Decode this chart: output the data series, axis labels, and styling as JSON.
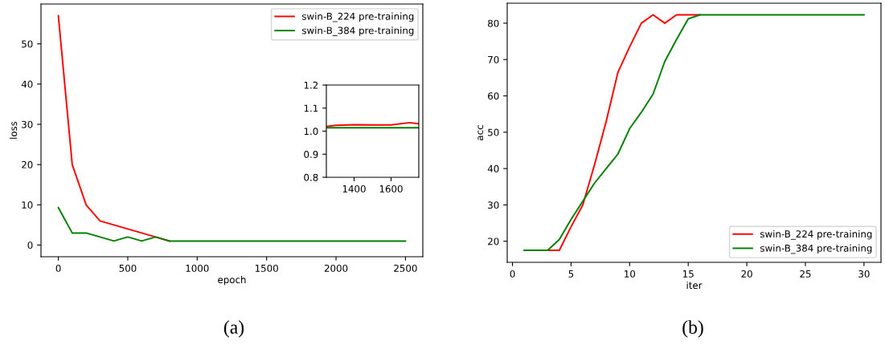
{
  "chart_data": [
    {
      "type": "line",
      "xlabel": "epoch",
      "ylabel": "loss",
      "x": [
        0,
        100,
        200,
        300,
        400,
        500,
        600,
        700,
        800,
        900,
        1000,
        1100,
        1200,
        1300,
        1400,
        1500,
        1600,
        1700,
        1800,
        1900,
        2000,
        2100,
        2200,
        2300,
        2400,
        2500
      ],
      "series": [
        {
          "name": "swin-B_224 pre-training",
          "color": "#ff0000",
          "values": [
            57,
            20,
            10,
            6,
            5,
            4,
            3,
            2,
            1,
            null,
            null,
            null,
            null,
            null,
            null,
            null,
            null,
            null,
            null,
            null,
            null,
            null,
            null,
            null,
            null,
            null
          ]
        },
        {
          "name": "swin-B_384 pre-training",
          "color": "#008000",
          "values": [
            9.3,
            3,
            3,
            2,
            1,
            2,
            1,
            2,
            1,
            1,
            1,
            1,
            1,
            1,
            1,
            1,
            1,
            1,
            1,
            1,
            1,
            1,
            1,
            1,
            1,
            1
          ]
        }
      ],
      "xlim": [
        -125,
        2625
      ],
      "ylim": [
        -2.9,
        59.9
      ],
      "xticks": [
        0,
        500,
        1000,
        1500,
        2000,
        2500
      ],
      "yticks": [
        0,
        10,
        20,
        30,
        40,
        50
      ],
      "grid": false,
      "legend": "top right",
      "annotations": [
        "(a)"
      ]
    },
    {
      "type": "line",
      "x": [
        1250,
        1300,
        1400,
        1500,
        1600,
        1700,
        1750
      ],
      "series": [
        {
          "color": "#ff0000",
          "values": [
            1.02,
            1.025,
            1.028,
            1.027,
            1.027,
            1.037,
            1.032
          ]
        },
        {
          "color": "#008000",
          "values": [
            1.015,
            1.015,
            1.015,
            1.015,
            1.015,
            1.015,
            1.015
          ]
        }
      ],
      "xlim": [
        1250,
        1750
      ],
      "ylim": [
        0.8,
        1.2
      ],
      "xticks": [
        1400,
        1600
      ],
      "yticks": [
        0.8,
        0.9,
        {
          "value": 1,
          "label": "1.0"
        },
        1.1,
        1.2
      ],
      "grid": false,
      "legend": false
    },
    {
      "type": "line",
      "xlabel": "iter",
      "ylabel": "acc",
      "x": [
        1,
        2,
        3,
        4,
        5,
        6,
        7,
        8,
        9,
        10,
        11,
        12,
        13,
        14,
        15,
        16,
        17,
        18,
        19,
        20,
        21,
        22,
        23,
        24,
        25,
        26,
        27,
        28,
        29,
        30
      ],
      "series": [
        {
          "name": "swin-B_224 pre-training",
          "color": "#ff0000",
          "values": [
            null,
            null,
            17.5,
            17.5,
            24,
            30,
            41,
            53,
            66.5,
            73.5,
            80,
            82.3,
            80,
            82.3,
            82.3,
            82.3,
            null,
            null,
            null,
            null,
            null,
            null,
            null,
            null,
            null,
            null,
            null,
            null,
            null,
            null
          ]
        },
        {
          "name": "swin-B_384 pre-training",
          "color": "#008000",
          "values": [
            17.5,
            17.5,
            17.5,
            20.5,
            26,
            31,
            36,
            40,
            44,
            51,
            55.5,
            60.5,
            69.5,
            75.5,
            81.2,
            82.3,
            82.3,
            82.3,
            82.3,
            82.3,
            82.3,
            82.3,
            82.3,
            82.3,
            82.3,
            82.3,
            82.3,
            82.3,
            82.3,
            82.3
          ]
        }
      ],
      "xlim": [
        -0.45,
        31.45
      ],
      "ylim": [
        14.2,
        85.5
      ],
      "xticks": [
        0,
        5,
        10,
        15,
        20,
        25,
        30
      ],
      "yticks": [
        20,
        30,
        40,
        50,
        60,
        70,
        80
      ],
      "grid": false,
      "legend": "bottom right",
      "annotations": [
        "(b)"
      ]
    }
  ]
}
